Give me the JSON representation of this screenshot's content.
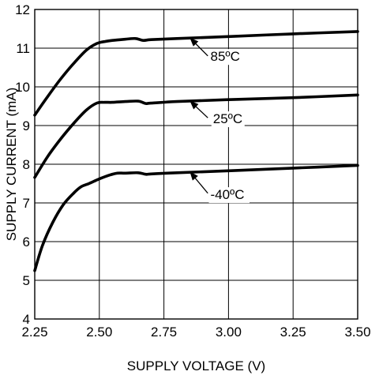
{
  "chart_data": {
    "type": "line",
    "title": "",
    "xlabel": "SUPPLY VOLTAGE (V)",
    "ylabel": "SUPPLY CURRENT (mA)",
    "xlim": [
      2.25,
      3.5
    ],
    "ylim": [
      4,
      12
    ],
    "x_ticks": [
      2.25,
      2.5,
      2.75,
      3.0,
      3.25,
      3.5
    ],
    "x_tick_labels": [
      "2.25",
      "2.50",
      "2.75",
      "3.00",
      "3.25",
      "3.50"
    ],
    "y_ticks": [
      4,
      5,
      6,
      7,
      8,
      9,
      10,
      11,
      12
    ],
    "y_tick_labels": [
      "4",
      "5",
      "6",
      "7",
      "8",
      "9",
      "10",
      "11",
      "12"
    ],
    "grid": true,
    "series": [
      {
        "name": "85ºC",
        "x": [
          2.25,
          2.3,
          2.35,
          2.4,
          2.45,
          2.49,
          2.52,
          2.55,
          2.6,
          2.64,
          2.67,
          2.7,
          2.8,
          3.0,
          3.25,
          3.5
        ],
        "y": [
          9.27,
          9.75,
          10.2,
          10.6,
          10.95,
          11.12,
          11.17,
          11.2,
          11.23,
          11.25,
          11.2,
          11.22,
          11.25,
          11.3,
          11.37,
          11.43
        ]
      },
      {
        "name": "25ºC",
        "x": [
          2.25,
          2.3,
          2.35,
          2.4,
          2.45,
          2.49,
          2.52,
          2.55,
          2.6,
          2.65,
          2.68,
          2.7,
          2.8,
          3.0,
          3.25,
          3.5
        ],
        "y": [
          7.66,
          8.2,
          8.65,
          9.05,
          9.4,
          9.58,
          9.6,
          9.6,
          9.62,
          9.63,
          9.57,
          9.58,
          9.62,
          9.67,
          9.72,
          9.79
        ]
      },
      {
        "name": "-40ºC",
        "x": [
          2.25,
          2.28,
          2.32,
          2.36,
          2.4,
          2.43,
          2.46,
          2.5,
          2.54,
          2.57,
          2.6,
          2.65,
          2.68,
          2.7,
          2.8,
          3.0,
          3.25,
          3.5
        ],
        "y": [
          5.25,
          5.9,
          6.5,
          6.95,
          7.25,
          7.42,
          7.5,
          7.62,
          7.72,
          7.77,
          7.77,
          7.78,
          7.74,
          7.75,
          7.78,
          7.83,
          7.9,
          7.97
        ]
      }
    ],
    "annotations": [
      {
        "series": "85ºC",
        "text": "85ºC",
        "arrow_from": [
          2.92,
          10.8
        ],
        "arrow_to": [
          2.85,
          11.27
        ],
        "text_at": [
          2.93,
          10.67
        ]
      },
      {
        "series": "25ºC",
        "text": "25ºC",
        "arrow_from": [
          2.92,
          9.2
        ],
        "arrow_to": [
          2.85,
          9.64
        ],
        "text_at": [
          2.94,
          9.06
        ]
      },
      {
        "series": "-40ºC",
        "text": "-40ºC",
        "arrow_from": [
          2.92,
          7.25
        ],
        "arrow_to": [
          2.85,
          7.81
        ],
        "text_at": [
          2.93,
          7.1
        ]
      }
    ]
  }
}
